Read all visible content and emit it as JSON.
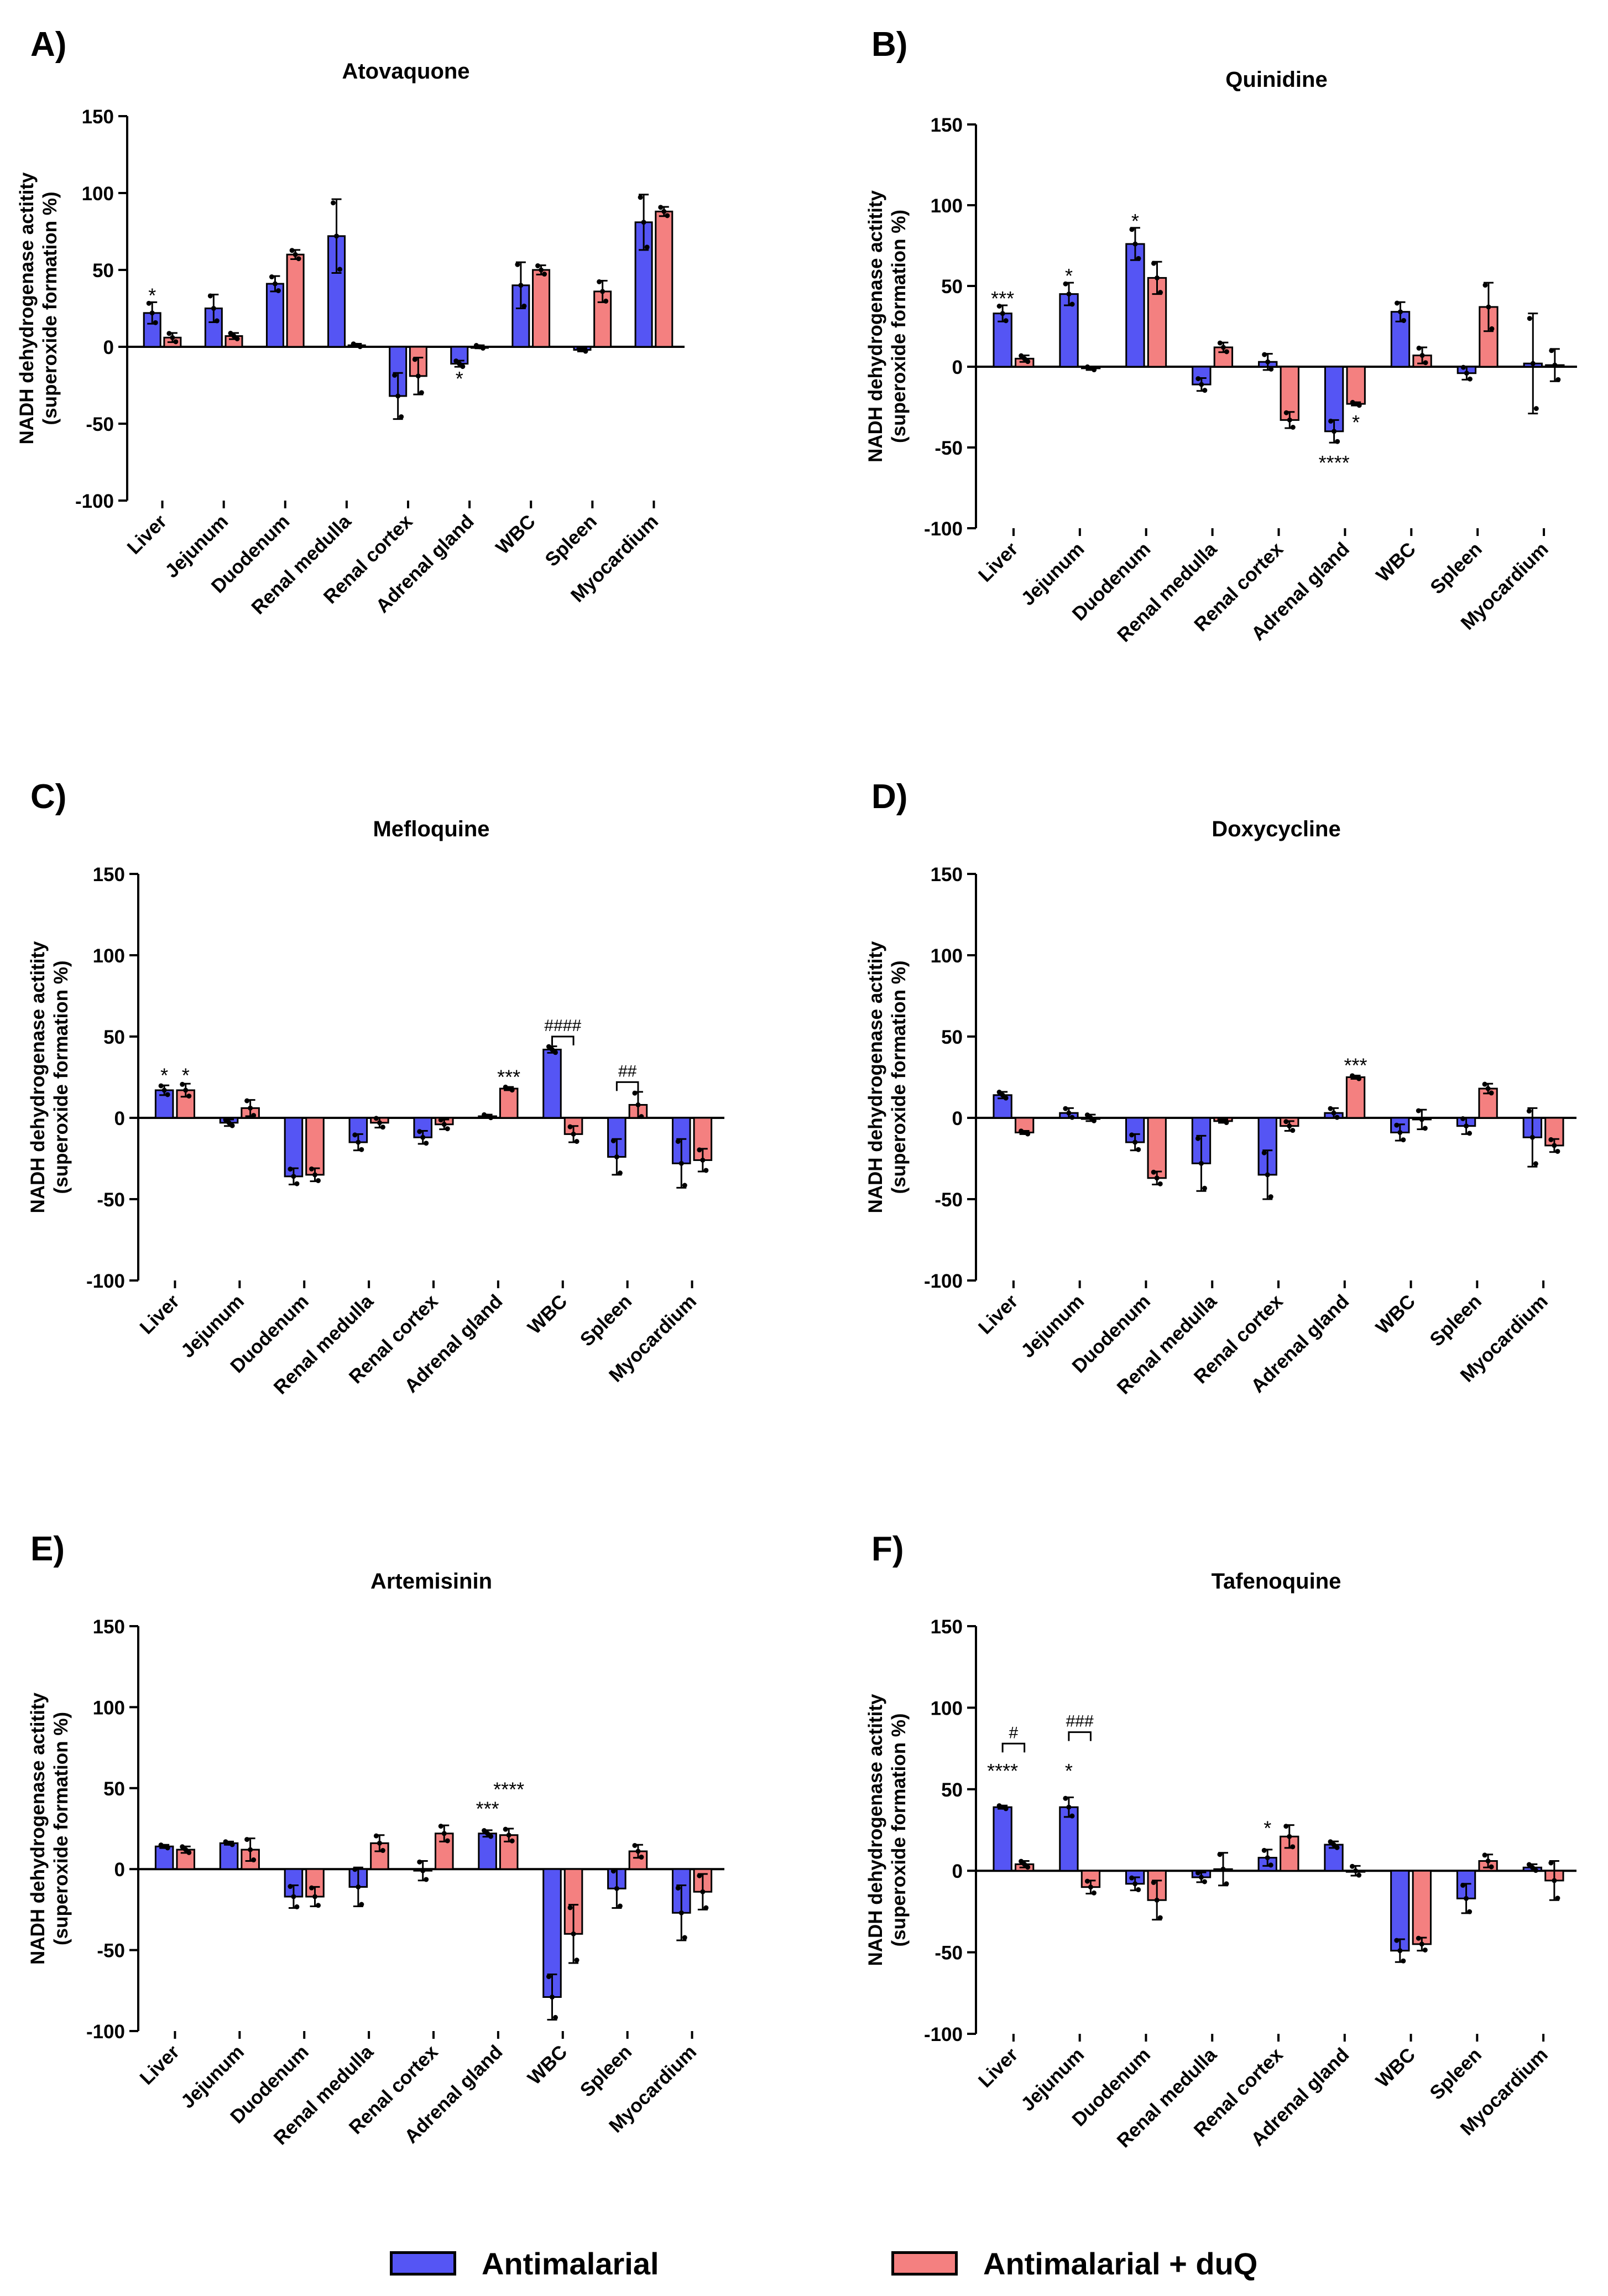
{
  "colors": {
    "antimalarial": "#5555f4",
    "antimalarial_duq": "#f48080",
    "axis": "#000000"
  },
  "legend": {
    "series_1": {
      "label": "Antimalarial",
      "color": "#5555f4"
    },
    "series_2": {
      "label": "Antimalarial + duQ",
      "color": "#f48080"
    }
  },
  "chart_data": [
    {
      "panel_label": "A)",
      "type": "bar",
      "title": "Atovaquone",
      "ylabel_line1": "NADH dehydrogenase actitity",
      "ylabel_line2": "(superoxide formation %)",
      "ylim": [
        -100,
        150
      ],
      "yticks": [
        "150",
        "100",
        "50",
        "0",
        "-50",
        "-100"
      ],
      "categories": [
        "Liver",
        "Jejunum",
        "Duodenum",
        "Renal medulla",
        "Renal cortex",
        "Adrenal gland",
        "WBC",
        "Spleen",
        "Myocardium"
      ],
      "series": [
        {
          "name": "Antimalarial",
          "values": [
            22,
            25,
            41,
            72,
            -32,
            -11,
            40,
            -2,
            81
          ],
          "errors": [
            7,
            9,
            5,
            24,
            15,
            2,
            15,
            1,
            18
          ]
        },
        {
          "name": "Antimalarial + duQ",
          "values": [
            6,
            7,
            60,
            1,
            -19,
            0,
            50,
            36,
            88
          ],
          "errors": [
            3,
            2,
            3,
            1,
            12,
            1,
            3,
            7,
            3
          ]
        }
      ],
      "annotations": [
        {
          "text": "*",
          "category": 0,
          "series": 0,
          "at": 29,
          "side": "above"
        },
        {
          "text": "*",
          "category": 5,
          "series": 0,
          "at": -13,
          "side": "below"
        }
      ],
      "brackets": []
    },
    {
      "panel_label": "B)",
      "type": "bar",
      "title": "Quinidine",
      "ylabel_line1": "NADH dehydrogenase actitity",
      "ylabel_line2": "(superoxide formation %)",
      "ylim": [
        -100,
        150
      ],
      "yticks": [
        "150",
        "100",
        "50",
        "0",
        "-50",
        "-100"
      ],
      "categories": [
        "Liver",
        "Jejunum",
        "Duodenum",
        "Renal medulla",
        "Renal cortex",
        "Adrenal gland",
        "WBC",
        "Spleen",
        "Myocardium"
      ],
      "series": [
        {
          "name": "Antimalarial",
          "values": [
            33,
            45,
            76,
            -11,
            3,
            -40,
            34,
            -4,
            2
          ],
          "errors": [
            5,
            7,
            10,
            4,
            5,
            7,
            6,
            4,
            31
          ]
        },
        {
          "name": "Antimalarial + duQ",
          "values": [
            5,
            -1,
            55,
            12,
            -33,
            -23,
            7,
            37,
            1
          ],
          "errors": [
            2,
            1,
            10,
            3,
            5,
            1,
            5,
            15,
            10
          ]
        }
      ],
      "annotations": [
        {
          "text": "***",
          "category": 0,
          "series": 0,
          "at": 38,
          "side": "above"
        },
        {
          "text": "*",
          "category": 1,
          "series": 0,
          "at": 52,
          "side": "above"
        },
        {
          "text": "*",
          "category": 2,
          "series": 0,
          "at": 86,
          "side": "above"
        },
        {
          "text": "****",
          "category": 5,
          "series": 0,
          "at": -52,
          "side": "below"
        },
        {
          "text": "*",
          "category": 5,
          "series": 1,
          "at": -27,
          "side": "below"
        }
      ],
      "brackets": []
    },
    {
      "panel_label": "C)",
      "type": "bar",
      "title": "Mefloquine",
      "ylabel_line1": "NADH dehydrogenase actitity",
      "ylabel_line2": "(superoxide formation %)",
      "ylim": [
        -100,
        150
      ],
      "yticks": [
        "150",
        "100",
        "50",
        "0",
        "-50",
        "-100"
      ],
      "categories": [
        "Liver",
        "Jejunum",
        "Duodenum",
        "Renal medulla",
        "Renal cortex",
        "Adrenal gland",
        "WBC",
        "Spleen",
        "Myocardium"
      ],
      "series": [
        {
          "name": "Antimalarial",
          "values": [
            17,
            -3,
            -36,
            -15,
            -12,
            1,
            42,
            -24,
            -28
          ],
          "errors": [
            3,
            2,
            5,
            5,
            4,
            1,
            2,
            11,
            15
          ]
        },
        {
          "name": "Antimalarial + duQ",
          "values": [
            17,
            6,
            -35,
            -3,
            -4,
            18,
            -10,
            8,
            -26
          ],
          "errors": [
            4,
            5,
            4,
            3,
            3,
            1,
            5,
            8,
            7
          ]
        }
      ],
      "annotations": [
        {
          "text": "*",
          "category": 0,
          "series": 0,
          "at": 22,
          "side": "above"
        },
        {
          "text": "*",
          "category": 0,
          "series": 1,
          "at": 22,
          "side": "above"
        },
        {
          "text": "***",
          "category": 5,
          "series": 1,
          "at": 21,
          "side": "above"
        }
      ],
      "brackets": [
        {
          "text": "####",
          "category": 6,
          "at": 50
        },
        {
          "text": "##",
          "category": 7,
          "at": 22
        }
      ]
    },
    {
      "panel_label": "D)",
      "type": "bar",
      "title": "Doxycycline",
      "ylabel_line1": "NADH dehydrogenase actitity",
      "ylabel_line2": "(superoxide formation %)",
      "ylim": [
        -100,
        150
      ],
      "yticks": [
        "150",
        "100",
        "50",
        "0",
        "-50",
        "-100"
      ],
      "categories": [
        "Liver",
        "Jejunum",
        "Duodenum",
        "Renal medulla",
        "Renal cortex",
        "Adrenal gland",
        "WBC",
        "Spleen",
        "Myocardium"
      ],
      "series": [
        {
          "name": "Antimalarial",
          "values": [
            14,
            3,
            -15,
            -28,
            -35,
            3,
            -9,
            -5,
            -12
          ],
          "errors": [
            2,
            3,
            5,
            17,
            15,
            3,
            5,
            5,
            18
          ]
        },
        {
          "name": "Antimalarial + duQ",
          "values": [
            -9,
            0,
            -37,
            -2,
            -5,
            25,
            -1,
            18,
            -17
          ],
          "errors": [
            1,
            2,
            4,
            1,
            3,
            1,
            6,
            3,
            4
          ]
        }
      ],
      "annotations": [
        {
          "text": "***",
          "category": 5,
          "series": 1,
          "at": 28,
          "side": "above"
        }
      ],
      "brackets": []
    },
    {
      "panel_label": "E)",
      "type": "bar",
      "title": "Artemisinin",
      "ylabel_line1": "NADH dehydrogenase actitity",
      "ylabel_line2": "(superoxide formation %)",
      "ylim": [
        -100,
        150
      ],
      "yticks": [
        "150",
        "100",
        "50",
        "0",
        "-50",
        "-100"
      ],
      "categories": [
        "Liver",
        "Jejunum",
        "Duodenum",
        "Renal medulla",
        "Renal cortex",
        "Adrenal gland",
        "WBC",
        "Spleen",
        "Myocardium"
      ],
      "series": [
        {
          "name": "Antimalarial",
          "values": [
            14,
            16,
            -17,
            -11,
            -1,
            22,
            -79,
            -12,
            -27
          ],
          "errors": [
            1,
            1,
            7,
            12,
            6,
            2,
            14,
            12,
            17
          ]
        },
        {
          "name": "Antimalarial + duQ",
          "values": [
            12,
            12,
            -17,
            16,
            22,
            21,
            -40,
            11,
            -14
          ],
          "errors": [
            2,
            7,
            6,
            5,
            5,
            4,
            18,
            4,
            11
          ]
        }
      ],
      "annotations": [
        {
          "text": "***",
          "category": 5,
          "series": 0,
          "at": 33,
          "side": "above"
        },
        {
          "text": "****",
          "category": 5,
          "series": 1,
          "at": 45,
          "side": "above"
        }
      ],
      "brackets": []
    },
    {
      "panel_label": "F)",
      "type": "bar",
      "title": "Tafenoquine",
      "ylabel_line1": "NADH dehydrogenase actitity",
      "ylabel_line2": "(superoxide formation %)",
      "ylim": [
        -100,
        150
      ],
      "yticks": [
        "150",
        "100",
        "50",
        "0",
        "-50",
        "-100"
      ],
      "categories": [
        "Liver",
        "Jejunum",
        "Duodenum",
        "Renal medulla",
        "Renal cortex",
        "Adrenal gland",
        "WBC",
        "Spleen",
        "Myocardium"
      ],
      "series": [
        {
          "name": "Antimalarial",
          "values": [
            39,
            39,
            -8,
            -4,
            8,
            16,
            -49,
            -17,
            2
          ],
          "errors": [
            1,
            6,
            4,
            3,
            5,
            2,
            7,
            9,
            2
          ]
        },
        {
          "name": "Antimalarial + duQ",
          "values": [
            4,
            -10,
            -18,
            1,
            21,
            0,
            -45,
            6,
            -6
          ],
          "errors": [
            2,
            4,
            12,
            10,
            7,
            3,
            4,
            4,
            12
          ]
        }
      ],
      "annotations": [
        {
          "text": "****",
          "category": 0,
          "series": 0,
          "at": 57,
          "side": "above"
        },
        {
          "text": "*",
          "category": 1,
          "series": 0,
          "at": 57,
          "side": "above"
        },
        {
          "text": "*",
          "category": 4,
          "series": 0,
          "at": 22,
          "side": "above"
        }
      ],
      "brackets": [
        {
          "text": "#",
          "category": 0,
          "at": 78
        },
        {
          "text": "###",
          "category": 1,
          "at": 85
        }
      ]
    }
  ]
}
